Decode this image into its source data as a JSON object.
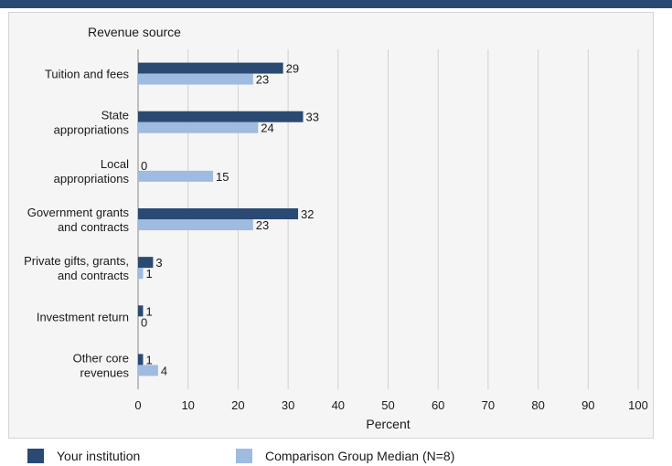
{
  "chart_data": {
    "type": "bar",
    "orientation": "horizontal",
    "category_axis_title": "Revenue source",
    "xlabel": "Percent",
    "xlim": [
      0,
      100
    ],
    "xticks": [
      0,
      10,
      20,
      30,
      40,
      50,
      60,
      70,
      80,
      90,
      100
    ],
    "grid": true,
    "categories": [
      [
        "Tuition and fees"
      ],
      [
        "State",
        "appropriations"
      ],
      [
        "Local",
        "appropriations"
      ],
      [
        "Government grants",
        "and contracts"
      ],
      [
        "Private gifts, grants,",
        "and contracts"
      ],
      [
        "Investment return"
      ],
      [
        "Other core",
        "revenues"
      ]
    ],
    "series": [
      {
        "name": "Your institution",
        "color": "#2b4a73",
        "values": [
          29,
          33,
          0,
          32,
          3,
          1,
          1
        ]
      },
      {
        "name": "Comparison Group Median (N=8)",
        "color": "#9fbbe0",
        "values": [
          23,
          24,
          15,
          23,
          1,
          0,
          4
        ]
      }
    ],
    "legend_position": "bottom"
  },
  "colors": {
    "header_bar": "#2b4a73",
    "gridline": "#d0d0d0",
    "frame_bg": "#f5f5f5"
  }
}
